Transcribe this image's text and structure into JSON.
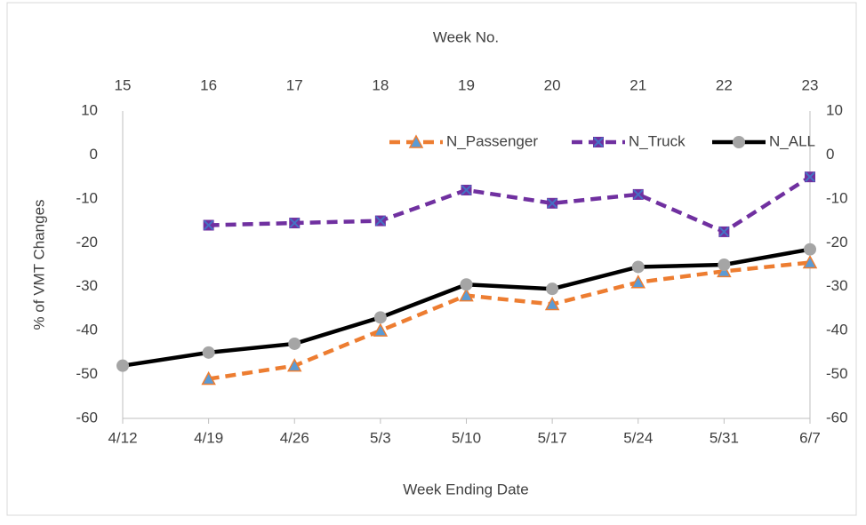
{
  "chart_data": {
    "type": "line",
    "x_label": "Week  Ending Date",
    "y_label": "% of VMT Changes",
    "top_axis_label": "Week No.",
    "categories": [
      "4/12",
      "4/19",
      "4/26",
      "5/3",
      "5/10",
      "5/17",
      "5/24",
      "5/31",
      "6/7"
    ],
    "top_categories": [
      15,
      16,
      17,
      18,
      19,
      20,
      21,
      22,
      23
    ],
    "ylim": [
      -60,
      10
    ],
    "yticks": [
      -60,
      -50,
      -40,
      -30,
      -20,
      -10,
      0,
      10
    ],
    "y2lim": [
      -60,
      10
    ],
    "y2ticks": [
      -60,
      -50,
      -40,
      -30,
      -20,
      -10,
      0,
      10
    ],
    "grid": false,
    "legend": "top-right",
    "series": [
      {
        "name": "N_Passenger",
        "color": "#ED7D31",
        "marker": "triangle",
        "marker_color": "#5B9BD5",
        "dash": true,
        "values": [
          null,
          -51,
          -48,
          -40,
          -32,
          -34,
          -29,
          -26.5,
          -24.5
        ]
      },
      {
        "name": "N_Truck",
        "color": "#7030A0",
        "marker": "x",
        "marker_color": "#4472C4",
        "dash": true,
        "values": [
          null,
          -16,
          -15.5,
          -15,
          -8,
          -11,
          -9,
          -17.5,
          -5
        ]
      },
      {
        "name": "N_ALL",
        "color": "#000000",
        "marker": "circle",
        "marker_color": "#A5A5A5",
        "dash": false,
        "values": [
          -48,
          -45,
          -43,
          -37,
          -29.5,
          -30.5,
          -25.5,
          -25,
          -21.5
        ]
      }
    ]
  }
}
